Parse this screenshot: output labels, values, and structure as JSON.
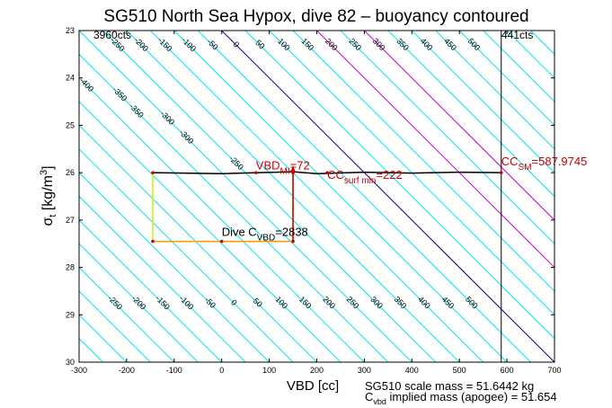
{
  "chart_data": {
    "type": "line",
    "title": "SG510 North Sea Hypox, dive 82 – buoyancy contoured",
    "xlabel": "VBD [cc]",
    "ylabel_main": "σ",
    "ylabel_sub": "t",
    "ylabel_unit": " [kg/m",
    "ylabel_sup": "3",
    "ylabel_end": "]",
    "xlim": [
      -300,
      700
    ],
    "ylim": [
      23,
      30
    ],
    "y_reversed": true,
    "xticks": [
      -300,
      -200,
      -100,
      0,
      100,
      200,
      300,
      400,
      500,
      600,
      700
    ],
    "yticks": [
      23,
      24,
      25,
      26,
      27,
      28,
      29,
      30
    ],
    "corner_labels": {
      "left": "3960cts",
      "right": "441cts"
    },
    "contour_levels_top": [
      -450,
      -400,
      -350,
      -300,
      -250,
      -200,
      -150,
      -100,
      -50,
      0,
      50,
      100,
      150,
      200,
      250,
      300,
      350,
      400,
      450,
      500
    ],
    "contour_labels_top": [
      "-450",
      "-400",
      "-350",
      "-300",
      "-250",
      "-200",
      "-150",
      "-100",
      "-50",
      "0",
      "50",
      "100",
      "150",
      "200",
      "250",
      "300",
      "350",
      "400",
      "450",
      "500"
    ],
    "contour_levels_bottom": [
      -250,
      -200,
      -150,
      -100,
      -50,
      0,
      50,
      100,
      150,
      200,
      250,
      300,
      350,
      400,
      450,
      500
    ],
    "contour_labels_bottom": [
      "-250",
      "-200",
      "-150",
      "-100",
      "-50",
      "0",
      "50",
      "100",
      "150",
      "200",
      "250",
      "300",
      "350",
      "400",
      "450",
      "500"
    ],
    "special_lines": [
      {
        "level": 0,
        "color": "#00008b"
      },
      {
        "level": 200,
        "color": "#cc00cc"
      },
      {
        "level": 300,
        "color": "#cc00cc"
      }
    ],
    "vertical_marker_x": 588,
    "series": [
      {
        "x": [
          -145,
          -145,
          -140,
          -100,
          -50,
          0,
          50,
          100,
          150,
          150,
          148
        ],
        "y": [
          26.0,
          27.45,
          27.45,
          27.45,
          27.45,
          27.45,
          27.45,
          27.45,
          27.45,
          26.0,
          26.0
        ],
        "color": "#ff9900"
      },
      {
        "x": [
          -145,
          -145
        ],
        "y": [
          26.0,
          27.45
        ],
        "color": "#ccff33"
      },
      {
        "x": [
          -145,
          0,
          150,
          200,
          300,
          400,
          500,
          590
        ],
        "y": [
          26.0,
          26.02,
          25.98,
          26.02,
          25.99,
          26.01,
          25.99,
          26.0
        ],
        "color": "#000000"
      },
      {
        "x": [
          150,
          150
        ],
        "y": [
          26.0,
          27.45
        ],
        "color": "#cc0000"
      }
    ],
    "annotations": [
      {
        "x": 72,
        "y": 25.93,
        "main": "VBD",
        "sub": "MI",
        "value": "=72",
        "color": "#cc0000"
      },
      {
        "x": 222,
        "y": 26.13,
        "main": "CC",
        "sub": "surf min",
        "value": "=222",
        "color": "#cc0000"
      },
      {
        "x": 588,
        "y": 25.85,
        "main": "CC",
        "sub": "SM",
        "value": "=587.9745",
        "color": "#cc0000"
      },
      {
        "x": 0,
        "y": 27.33,
        "main": "Dive C",
        "sub": "VBD",
        "value": "=2838",
        "color": "#000000"
      }
    ],
    "footer": [
      {
        "main": "SG510 scale mass = 51.6442 kg"
      },
      {
        "main": "C",
        "sub": "vbd",
        "rest": " implied mass (apogee) = 51.654"
      }
    ],
    "colors": {
      "contour": "#00e5ee",
      "axis": "#000000"
    }
  }
}
